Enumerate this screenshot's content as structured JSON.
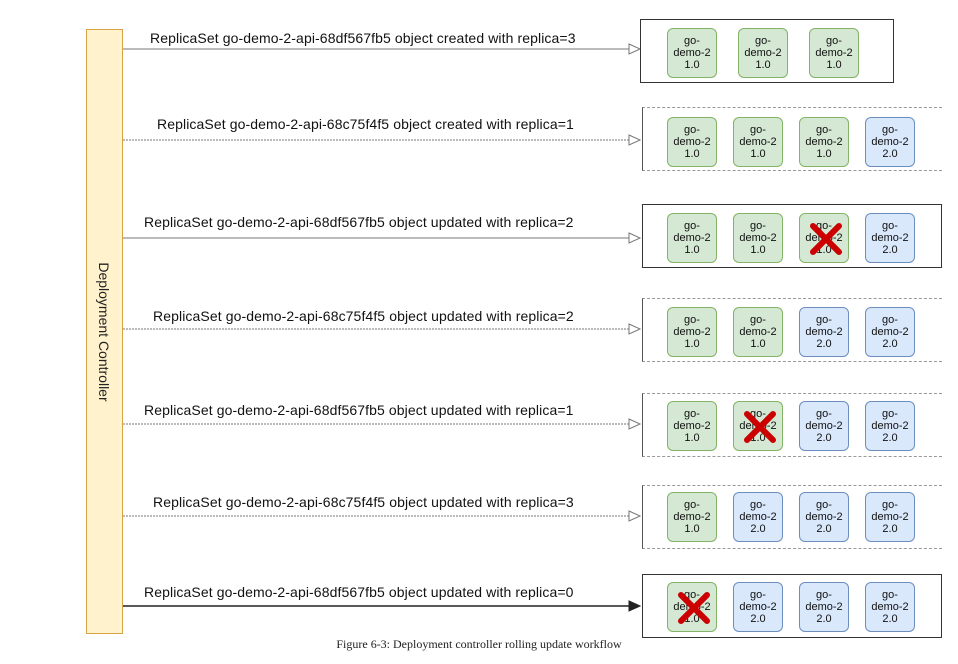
{
  "controller": {
    "label": "Deployment Controller"
  },
  "pod_label": {
    "line1": "go-",
    "line2": "demo-2"
  },
  "colors": {
    "v1_fill": "#d5e8d4",
    "v1_stroke": "#82b366",
    "v2_fill": "#dae8fc",
    "v2_stroke": "#6c8ebf",
    "terminate": "#cc0000"
  },
  "steps": [
    {
      "message": "ReplicaSet go-demo-2-api-68df567fb5 object created with replica=3",
      "pods": [
        {
          "version": "1.0"
        },
        {
          "version": "1.0"
        },
        {
          "version": "1.0"
        }
      ]
    },
    {
      "message": "ReplicaSet go-demo-2-api-68c75f4f5 object created with replica=1",
      "pods": [
        {
          "version": "1.0"
        },
        {
          "version": "1.0"
        },
        {
          "version": "1.0"
        },
        {
          "version": "2.0"
        }
      ]
    },
    {
      "message": "ReplicaSet go-demo-2-api-68df567fb5 object updated with replica=2",
      "pods": [
        {
          "version": "1.0"
        },
        {
          "version": "1.0"
        },
        {
          "version": "1.0",
          "terminated": true
        },
        {
          "version": "2.0"
        }
      ]
    },
    {
      "message": "ReplicaSet go-demo-2-api-68c75f4f5 object updated with replica=2",
      "pods": [
        {
          "version": "1.0"
        },
        {
          "version": "1.0"
        },
        {
          "version": "2.0"
        },
        {
          "version": "2.0"
        }
      ]
    },
    {
      "message": "ReplicaSet go-demo-2-api-68df567fb5 object updated with replica=1",
      "pods": [
        {
          "version": "1.0"
        },
        {
          "version": "1.0",
          "terminated": true
        },
        {
          "version": "2.0"
        },
        {
          "version": "2.0"
        }
      ]
    },
    {
      "message": "ReplicaSet go-demo-2-api-68c75f4f5 object updated with replica=3",
      "pods": [
        {
          "version": "1.0"
        },
        {
          "version": "2.0"
        },
        {
          "version": "2.0"
        },
        {
          "version": "2.0"
        }
      ]
    },
    {
      "message": "ReplicaSet go-demo-2-api-68df567fb5 object updated with replica=0",
      "pods": [
        {
          "version": "1.0",
          "terminated": true
        },
        {
          "version": "2.0"
        },
        {
          "version": "2.0"
        },
        {
          "version": "2.0"
        }
      ]
    }
  ],
  "caption": "Figure 6-3: Deployment controller rolling update workflow"
}
